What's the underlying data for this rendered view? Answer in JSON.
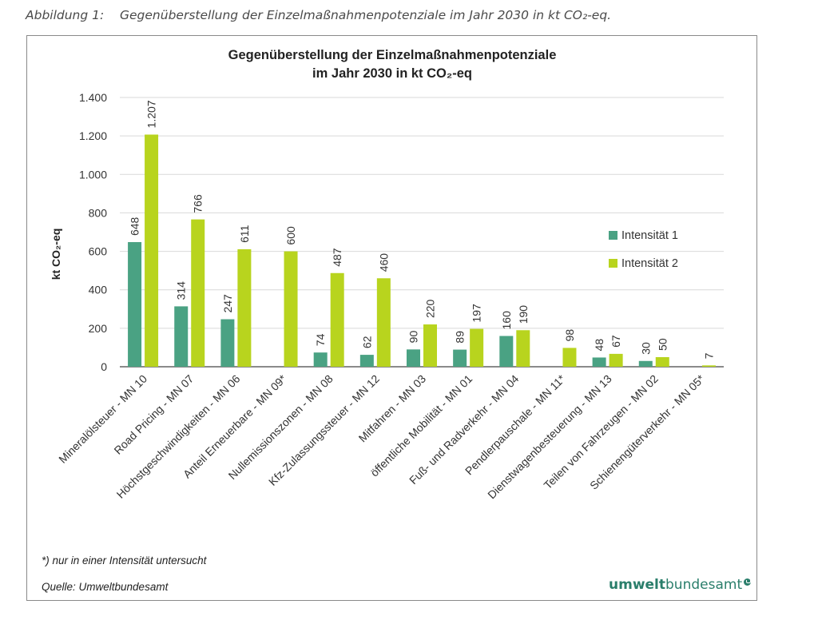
{
  "figure": {
    "caption_number": "Abbildung 1:",
    "caption_text": "Gegenüberstellung der Einzelmaßnahmenpotenziale im Jahr 2030 in kt CO₂-eq.",
    "footnote": "*) nur in einer Intensität untersucht",
    "source": "Quelle: Umweltbundesamt",
    "logo_bold": "umwelt",
    "logo_regular": "bundesamt"
  },
  "chart_data": {
    "type": "bar",
    "title_line1": "Gegenüberstellung der Einzelmaßnahmenpotenziale",
    "title_line2": "im Jahr 2030 in kt CO₂-eq",
    "ylabel": "kt CO₂-eq",
    "ylim": [
      0,
      1400
    ],
    "yticks": [
      0,
      200,
      400,
      600,
      800,
      1000,
      1200,
      1400
    ],
    "ytick_labels": [
      "0",
      "200",
      "400",
      "600",
      "800",
      "1.000",
      "1.200",
      "1.400"
    ],
    "grid": true,
    "legend_position": "right",
    "categories": [
      "Mineralölsteuer - MN 10",
      "Road Pricing - MN 07",
      "Höchstgeschwindigkeiten - MN 06",
      "Anteil Erneuerbare - MN 09*",
      "Nullemissionszonen - MN 08",
      "Kfz-Zulassungssteuer - MN 12",
      "Mitfahren - MN 03",
      "öffentliche Mobilität - MN 01",
      "Fuß- und Radverkehr - MN 04",
      "Pendlerpauschale - MN 11*",
      "Dienstwagenbesteuerung - MN 13",
      "Teilen von Fahrzeugen - MN 02",
      "Schienengüterverkehr - MN 05*"
    ],
    "series": [
      {
        "name": "Intensität 1",
        "color": "#4aa283",
        "values": [
          648,
          314,
          247,
          null,
          74,
          62,
          90,
          89,
          160,
          null,
          48,
          30,
          null
        ],
        "labels": [
          "648",
          "314",
          "247",
          "",
          "74",
          "62",
          "90",
          "89",
          "160",
          "",
          "48",
          "30",
          ""
        ]
      },
      {
        "name": "Intensität 2",
        "color": "#b8d41e",
        "values": [
          1207,
          766,
          611,
          600,
          487,
          460,
          220,
          197,
          190,
          98,
          67,
          50,
          7
        ],
        "labels": [
          "1.207",
          "766",
          "611",
          "600",
          "487",
          "460",
          "220",
          "197",
          "190",
          "98",
          "67",
          "50",
          "7"
        ]
      }
    ]
  }
}
